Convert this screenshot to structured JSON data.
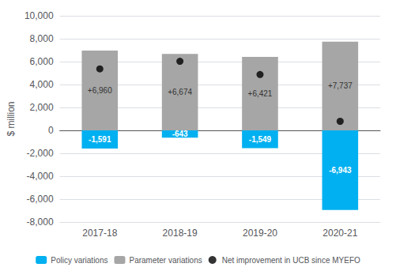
{
  "chart_data": {
    "type": "bar",
    "categories": [
      "2017-18",
      "2018-19",
      "2019-20",
      "2020-21"
    ],
    "series": [
      {
        "name": "Policy variations",
        "color": "#00b0f0",
        "values": [
          -1591,
          -643,
          -1549,
          -6943
        ],
        "value_labels": [
          "-1,591",
          "-643",
          "-1,549",
          "-6,943"
        ]
      },
      {
        "name": "Parameter variations",
        "color": "#a6a6a6",
        "values": [
          6960,
          6674,
          6421,
          7737
        ],
        "value_labels": [
          "+6,960",
          "+6,674",
          "+6,421",
          "+7,737"
        ]
      },
      {
        "name": "Net improvement in UCB since MYEFO",
        "type": "scatter",
        "marker": "circle",
        "color": "#000000",
        "values": [
          5369,
          6031,
          4872,
          794
        ]
      }
    ],
    "ylabel": "$ million",
    "ylim": [
      -8000,
      10000
    ],
    "yticks": [
      {
        "value": -8000,
        "label": "-8,000"
      },
      {
        "value": -6000,
        "label": "-6,000"
      },
      {
        "value": -4000,
        "label": "-4,000"
      },
      {
        "value": -2000,
        "label": "-2,000"
      },
      0,
      {
        "value": 2000,
        "label": "2,000"
      },
      {
        "value": 4000,
        "label": "4,000"
      },
      {
        "value": 6000,
        "label": "6,000"
      },
      {
        "value": 8000,
        "label": "8,000"
      },
      {
        "value": 10000,
        "label": "10,000"
      }
    ],
    "grid": true,
    "legend": "bottom",
    "data_labels": true
  }
}
